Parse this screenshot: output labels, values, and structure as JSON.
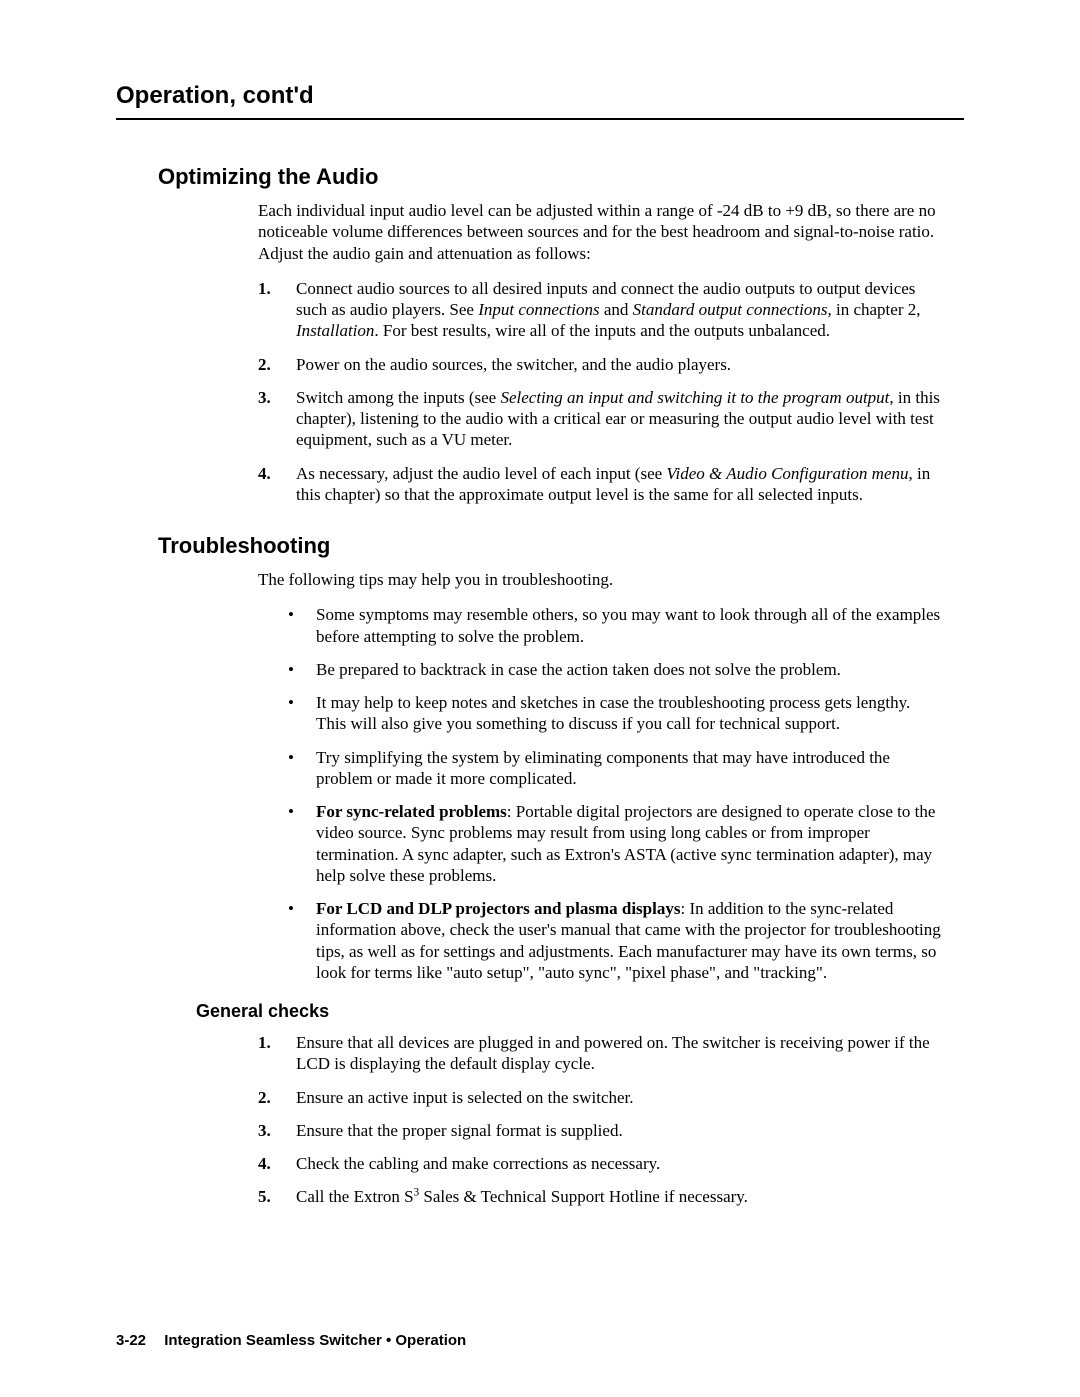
{
  "chapter_title": "Operation, cont'd",
  "section1": {
    "heading": "Optimizing the Audio",
    "intro": "Each individual input audio level can be adjusted within a range of -24 dB to +9 dB, so there are no noticeable volume differences between sources and for the best headroom and signal-to-noise ratio.  Adjust the audio gain and attenuation as follows:",
    "step1_pre": "Connect audio sources to all desired inputs and connect the audio outputs to output devices such as audio players.  See ",
    "step1_link1": "Input connections",
    "step1_mid1": " and ",
    "step1_link2": "Standard output connections",
    "step1_mid2": ", in chapter 2, ",
    "step1_link3": "Installation",
    "step1_post": ".  For best results, wire all of the inputs and the outputs unbalanced.",
    "step2": "Power on the audio sources, the switcher, and the audio players.",
    "step3_pre": "Switch among the inputs (see ",
    "step3_link1": "Selecting an input and switching it to the program output",
    "step3_post": ", in this chapter), listening to the audio with a critical ear or measuring the output audio level with test equipment, such as a VU meter.",
    "step4_pre": "As necessary, adjust the audio level of each input (see ",
    "step4_link1": "Video & Audio Configuration menu",
    "step4_post": ", in this chapter) so that the approximate output level is the same for all selected inputs."
  },
  "section2": {
    "heading": "Troubleshooting",
    "intro": "The following tips may help you in troubleshooting.",
    "bullet1": "Some symptoms may resemble others, so you may want to look through all of the examples before attempting to solve the problem.",
    "bullet2": "Be prepared to backtrack in case the action taken does not solve the problem.",
    "bullet3": "It may help to keep notes and sketches in case the troubleshooting process gets lengthy.  This will also give you something to discuss if you call for technical support.",
    "bullet4": "Try simplifying the system by eliminating components that may have introduced the problem or made it more complicated.",
    "bullet5_bold": "For sync-related problems",
    "bullet5_rest": ": Portable digital projectors are designed to operate close to the video source.  Sync problems may result from using long cables or from improper termination.  A sync adapter, such as Extron's ASTA (active sync termination adapter), may help solve these problems.",
    "bullet6_bold": "For LCD and DLP projectors and plasma displays",
    "bullet6_rest": ": In addition to the sync-related information above, check the user's manual that came with the projector for troubleshooting tips, as well as for settings and adjustments.  Each manufacturer may have its own terms, so look for terms like \"auto setup\", \"auto sync\", \"pixel phase\", and \"tracking\"."
  },
  "subsection": {
    "heading": "General checks",
    "step1": "Ensure that all devices are plugged in and powered on.  The switcher is receiving power if the LCD is displaying the default display cycle.",
    "step2": "Ensure an active input is selected on the switcher.",
    "step3": "Ensure that the proper signal format is supplied.",
    "step4": "Check the cabling and make corrections as necessary.",
    "step5_pre": "Call the Extron S",
    "step5_sup": "3",
    "step5_post": " Sales & Technical Support Hotline if necessary."
  },
  "footer": {
    "page_num": "3-22",
    "title": "Integration Seamless Switcher • Operation"
  },
  "markers": {
    "n1": "1.",
    "n2": "2.",
    "n3": "3.",
    "n4": "4.",
    "n5": "5.",
    "bullet": "•"
  }
}
